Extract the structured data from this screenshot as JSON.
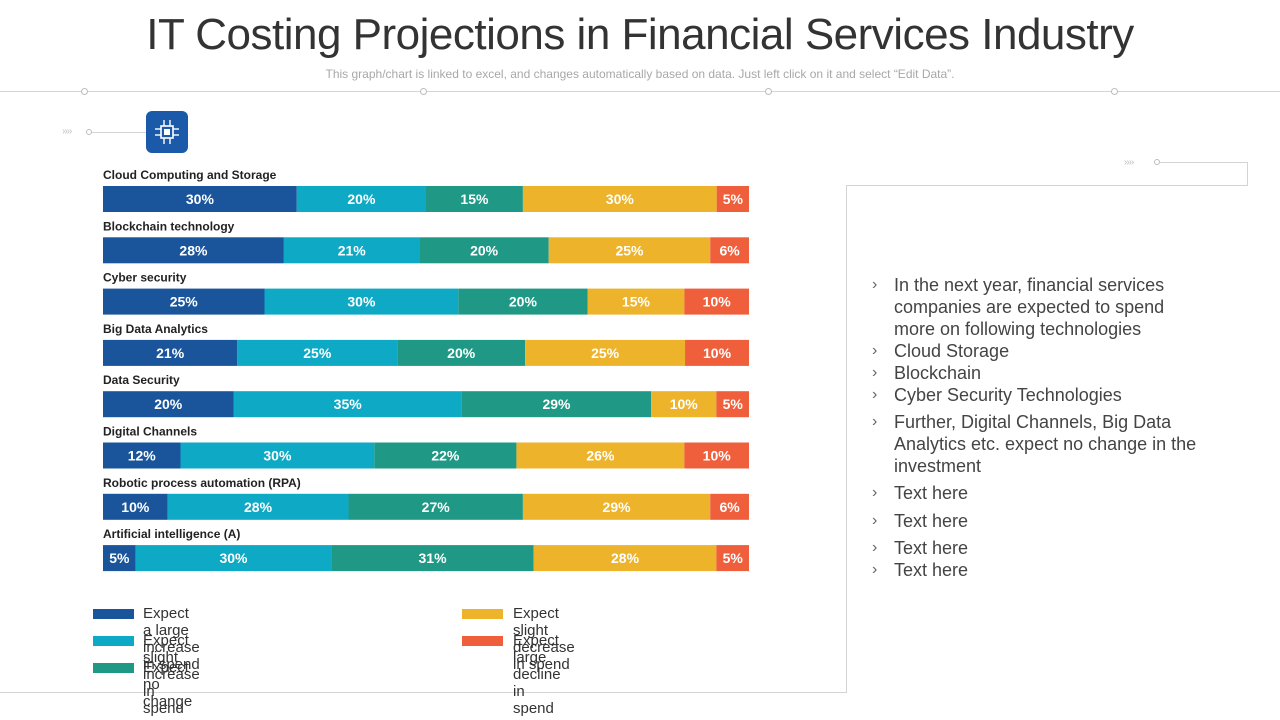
{
  "title": "IT Costing Projections in Financial Services Industry",
  "subtitle": "This graph/chart is linked to excel, and changes automatically based on data. Just left click on it and select “Edit Data”.",
  "icon": "circuit-chip-icon",
  "colors": {
    "large_increase": "#1a559c",
    "slight_increase": "#0ea9c5",
    "no_change": "#1f9986",
    "slight_decrease": "#edb32b",
    "large_decline": "#ef5f3c"
  },
  "chart_data": {
    "type": "bar",
    "orientation": "horizontal",
    "stacked": true,
    "unit": "%",
    "categories": [
      "Cloud Computing and Storage",
      "Blockchain technology",
      "Cyber security",
      "Big Data Analytics",
      "Data Security",
      "Digital Channels",
      "Robotic process automation (RPA)",
      "Artificial intelligence (A)"
    ],
    "series": [
      {
        "name": "Expect a large increase in spend",
        "color": "#1a559c",
        "values": [
          30,
          28,
          25,
          21,
          20,
          12,
          10,
          5
        ]
      },
      {
        "name": "Expect slight increase in spend",
        "color": "#0ea9c5",
        "values": [
          20,
          21,
          30,
          25,
          35,
          30,
          28,
          30
        ]
      },
      {
        "name": "Expect no change",
        "color": "#1f9986",
        "values": [
          15,
          20,
          20,
          20,
          29,
          22,
          27,
          31
        ]
      },
      {
        "name": "Expect slight decrease in spend",
        "color": "#edb32b",
        "values": [
          30,
          25,
          15,
          25,
          10,
          26,
          29,
          28
        ]
      },
      {
        "name": "Expect large decline in spend",
        "color": "#ef5f3c",
        "values": [
          5,
          6,
          10,
          10,
          5,
          10,
          6,
          5
        ]
      }
    ],
    "legend_position": "bottom"
  },
  "legend": [
    {
      "label": "Expect a large increase in spend",
      "color": "#1a559c"
    },
    {
      "label": "Expect slight decrease in spend",
      "color": "#edb32b"
    },
    {
      "label": "Expect slight increase in spend",
      "color": "#0ea9c5"
    },
    {
      "label": "Expect large decline in spend",
      "color": "#ef5f3c"
    },
    {
      "label": "Expect no change",
      "color": "#1f9986"
    }
  ],
  "notes": [
    "In the next year, financial services companies are expected to spend more on following technologies",
    "Cloud Storage",
    "Blockchain",
    "Cyber Security Technologies",
    "Further, Digital Channels, Big Data Analytics etc. expect no change in the investment",
    "Text here",
    "Text here",
    "Text here",
    "Text here"
  ]
}
